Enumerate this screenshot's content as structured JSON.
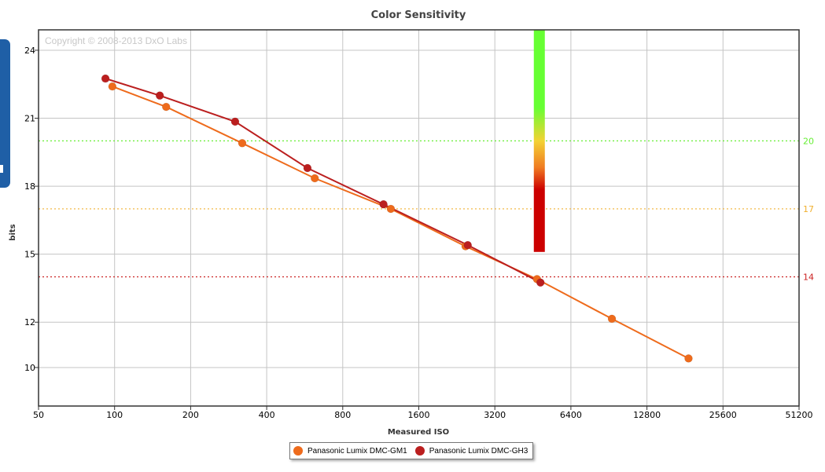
{
  "chart_data": {
    "type": "line",
    "title": "Color Sensitivity",
    "xlabel": "Measured ISO",
    "ylabel": "bits",
    "x_scale": "log2",
    "xlim": [
      50,
      51200
    ],
    "ylim": [
      8.3,
      24.9
    ],
    "x_ticks": [
      "50",
      "100",
      "200",
      "400",
      "800",
      "1600",
      "3200",
      "6400",
      "12800",
      "25600",
      "51200"
    ],
    "y_ticks": [
      "10",
      "12",
      "15",
      "18",
      "21",
      "24"
    ],
    "grid": true,
    "watermark": "Copyright © 2008-2013 DxO Labs",
    "reference_lines": [
      {
        "value": 20,
        "label": "20",
        "color": "#66ee33"
      },
      {
        "value": 17,
        "label": "17",
        "color": "#f0b030"
      },
      {
        "value": 14,
        "label": "14",
        "color": "#cc2222"
      }
    ],
    "scale_bar": {
      "x": 4800,
      "y_top": 24.9,
      "y_bottom": 15.1,
      "colors": [
        "#66ff33",
        "#66ff33",
        "#f3d233",
        "#f07b22",
        "#cc0000",
        "#cc0000"
      ]
    },
    "series": [
      {
        "name": "Panasonic Lumix DMC-GM1",
        "color": "#ee6b1c",
        "points": [
          [
            98,
            22.4
          ],
          [
            160,
            21.5
          ],
          [
            320,
            19.9
          ],
          [
            620,
            18.35
          ],
          [
            1240,
            17.0
          ],
          [
            2450,
            15.35
          ],
          [
            4700,
            13.9
          ],
          [
            9300,
            12.15
          ],
          [
            18700,
            10.4
          ]
        ]
      },
      {
        "name": "Panasonic Lumix DMC-GH3",
        "color": "#bb1f1f",
        "points": [
          [
            92,
            22.75
          ],
          [
            151,
            22.0
          ],
          [
            300,
            20.85
          ],
          [
            580,
            18.8
          ],
          [
            1160,
            17.2
          ],
          [
            2500,
            15.4
          ],
          [
            4850,
            13.75
          ]
        ]
      }
    ]
  }
}
